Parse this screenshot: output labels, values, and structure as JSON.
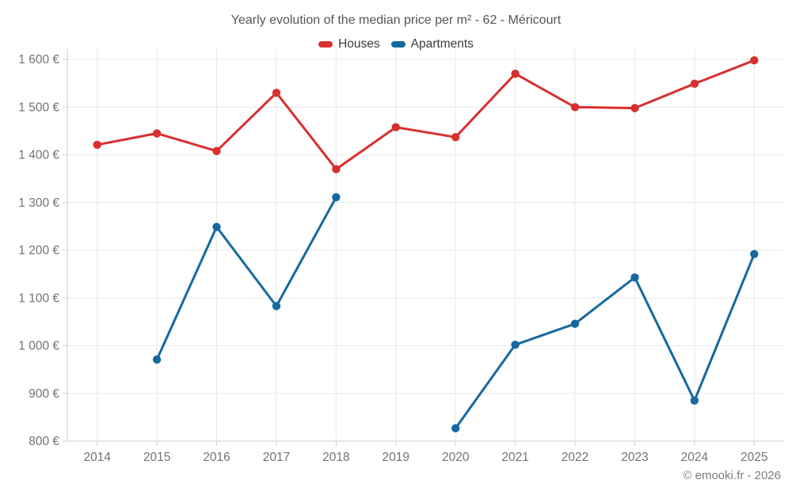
{
  "footer": {
    "credit": "© emooki.fr - 2026"
  },
  "chart_data": {
    "type": "line",
    "title": "Yearly evolution of the median price per m² - 62 - Méricourt",
    "xlabel": "",
    "ylabel": "",
    "x": [
      "2014",
      "2015",
      "2016",
      "2017",
      "2018",
      "2019",
      "2020",
      "2021",
      "2022",
      "2023",
      "2024",
      "2025"
    ],
    "series": [
      {
        "name": "Houses",
        "color": "#d7302f",
        "values": [
          1421,
          1445,
          1408,
          1530,
          1370,
          1458,
          1437,
          1570,
          1500,
          1498,
          1549,
          1598
        ]
      },
      {
        "name": "Apartments",
        "color": "#16699e",
        "values": [
          null,
          971,
          1249,
          1083,
          1311,
          null,
          827,
          1002,
          1046,
          1143,
          885,
          1192
        ]
      }
    ],
    "ylim": [
      800,
      1600
    ],
    "ytick_step": 100,
    "ytick_labels": [
      "800 €",
      "900 €",
      "1 000 €",
      "1 100 €",
      "1 200 €",
      "1 300 €",
      "1 400 €",
      "1 500 €",
      "1 600 €"
    ],
    "grid": true,
    "legend_position": "top",
    "colors": {
      "grid_line": "#e8e8e8",
      "axis_line": "#cfcfcf",
      "tick_text": "#737373",
      "title_text": "#555555",
      "legend_text": "#3d3d3d",
      "background": "#ffffff"
    }
  }
}
